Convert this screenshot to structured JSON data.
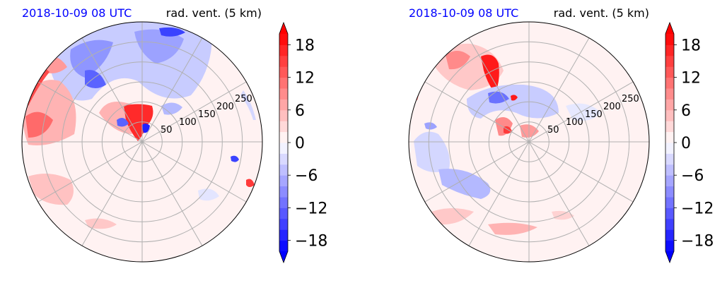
{
  "panels": [
    {
      "title_left": "2018-10-09 08 UTC",
      "title_right": "rad. vent. (5 km)",
      "ring_labels": [
        "50",
        "100",
        "150",
        "200",
        "250"
      ]
    },
    {
      "title_left": "2018-10-09 08 UTC",
      "title_right": "rad. vent. (5 km)",
      "ring_labels": [
        "50",
        "100",
        "150",
        "200",
        "250"
      ]
    }
  ],
  "colors": {
    "title_left": "#0000ff",
    "positive_max": "#ff0000",
    "negative_max": "#0000ff",
    "grid": "#b0b0b0"
  },
  "chart_data": [
    {
      "type": "heatmap",
      "projection": "polar",
      "rings_km": [
        50,
        100,
        150,
        200,
        250,
        300
      ],
      "ring_label_angle_deg": 22.5,
      "spokes_deg": [
        0,
        30,
        60,
        90,
        120,
        150,
        180,
        210,
        240,
        270,
        300,
        330
      ],
      "colorbar": {
        "ticks": [
          -18,
          -12,
          -6,
          0,
          6,
          12,
          18
        ],
        "tick_labels": [
          "−18",
          "−12",
          "−6",
          "0",
          "6",
          "12",
          "18"
        ],
        "range": [
          -20,
          20
        ],
        "levels": 20,
        "extend": "both",
        "cmap": "bwr"
      }
    },
    {
      "type": "heatmap",
      "projection": "polar",
      "rings_km": [
        50,
        100,
        150,
        200,
        250,
        300
      ],
      "ring_label_angle_deg": 22.5,
      "spokes_deg": [
        0,
        30,
        60,
        90,
        120,
        150,
        180,
        210,
        240,
        270,
        300,
        330
      ],
      "colorbar": {
        "ticks": [
          -18,
          -12,
          -6,
          0,
          6,
          12,
          18
        ],
        "tick_labels": [
          "−18",
          "−12",
          "−6",
          "0",
          "6",
          "12",
          "18"
        ],
        "range": [
          -20,
          20
        ],
        "levels": 20,
        "extend": "both",
        "cmap": "bwr"
      }
    }
  ]
}
